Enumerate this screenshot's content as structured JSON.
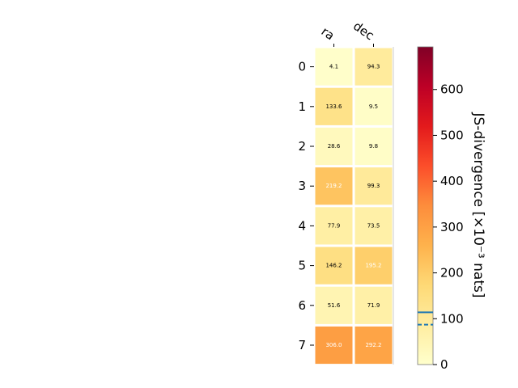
{
  "chart_data": {
    "type": "heatmap",
    "columns": [
      "ra",
      "dec"
    ],
    "rows": [
      "0",
      "1",
      "2",
      "3",
      "4",
      "5",
      "6",
      "7"
    ],
    "values": [
      [
        4.1,
        94.3
      ],
      [
        133.6,
        9.5
      ],
      [
        28.6,
        9.8
      ],
      [
        219.2,
        99.3
      ],
      [
        77.9,
        73.5
      ],
      [
        146.2,
        195.2
      ],
      [
        51.6,
        71.9
      ],
      [
        306.0,
        292.2
      ]
    ],
    "cell_labels": [
      [
        "4.1",
        "94.3"
      ],
      [
        "133.6",
        "9.5"
      ],
      [
        "28.6",
        "9.8"
      ],
      [
        "219.2",
        "99.3"
      ],
      [
        "77.9",
        "73.5"
      ],
      [
        "146.2",
        "195.2"
      ],
      [
        "51.6",
        "71.9"
      ],
      [
        "306.0",
        "292.2"
      ]
    ],
    "colormap": "YlOrRd",
    "colorbar": {
      "label": "JS-divergence [×10⁻³ nats]",
      "range": [
        0,
        693
      ],
      "ticks": [
        "0",
        "100",
        "200",
        "300",
        "400",
        "500",
        "600"
      ],
      "tick_values": [
        0,
        100,
        200,
        300,
        400,
        500,
        600
      ],
      "reference_lines": [
        {
          "value": 114,
          "style": "solid",
          "color": "#1f77b4"
        },
        {
          "value": 87,
          "style": "dashed",
          "color": "#1f77b4"
        }
      ]
    }
  }
}
